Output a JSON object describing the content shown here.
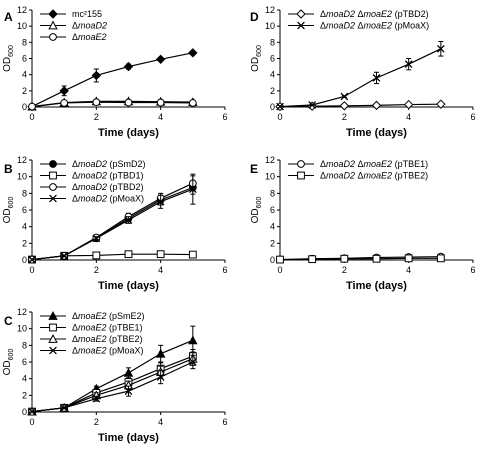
{
  "chart_data": [
    {
      "panel": "A",
      "type": "line",
      "xlabel": "Time (days)",
      "ylabel": "OD600",
      "xlim": [
        0,
        6
      ],
      "ylim": [
        0,
        12
      ],
      "xticks": [
        0,
        2,
        4,
        6
      ],
      "yticks": [
        0,
        2,
        4,
        6,
        8,
        10,
        12
      ],
      "legend_position": "top-left",
      "series": [
        {
          "name": "mc²155",
          "legend_parts": [
            {
              "t": "mc²155",
              "i": false
            }
          ],
          "marker": "diamond-filled",
          "x": [
            0,
            1,
            2,
            3,
            4,
            5
          ],
          "y": [
            0.05,
            2.0,
            3.9,
            5.0,
            5.9,
            6.7
          ],
          "err": [
            0,
            0.6,
            0.8,
            0.3,
            0.2,
            0.15
          ]
        },
        {
          "name": "ΔmoaD2",
          "legend_parts": [
            {
              "t": "Δ",
              "i": false
            },
            {
              "t": "moaD2",
              "i": true
            }
          ],
          "marker": "triangle-open",
          "x": [
            0,
            1,
            2,
            3,
            4,
            5
          ],
          "y": [
            0.05,
            0.55,
            0.7,
            0.7,
            0.65,
            0.6
          ],
          "err": [
            0,
            0.15,
            0.2,
            0.15,
            0.1,
            0.1
          ]
        },
        {
          "name": "ΔmoaE2",
          "legend_parts": [
            {
              "t": "Δ",
              "i": false
            },
            {
              "t": "moaE2",
              "i": true
            }
          ],
          "marker": "circle-open",
          "x": [
            0,
            1,
            2,
            3,
            4,
            5
          ],
          "y": [
            0.05,
            0.5,
            0.6,
            0.55,
            0.55,
            0.5
          ],
          "err": [
            0,
            0.1,
            0.1,
            0.1,
            0.1,
            0.1
          ]
        }
      ]
    },
    {
      "panel": "B",
      "type": "line",
      "xlabel": "Time (days)",
      "ylabel": "OD600",
      "xlim": [
        0,
        6
      ],
      "ylim": [
        0,
        12
      ],
      "xticks": [
        0,
        2,
        4,
        6
      ],
      "yticks": [
        0,
        2,
        4,
        6,
        8,
        10,
        12
      ],
      "legend_position": "top-left",
      "series": [
        {
          "name": "ΔmoaD2 (pSmD2)",
          "legend_parts": [
            {
              "t": "Δ",
              "i": false
            },
            {
              "t": "moaD2",
              "i": true
            },
            {
              "t": " (pSmD2)",
              "i": false
            }
          ],
          "marker": "circle-filled",
          "x": [
            0,
            1,
            2,
            3,
            4,
            5
          ],
          "y": [
            0.05,
            0.5,
            2.6,
            5.0,
            7.2,
            8.7
          ],
          "err": [
            0,
            0.1,
            0.2,
            0.4,
            0.6,
            0.8
          ]
        },
        {
          "name": "ΔmoaD2 (pTBD1)",
          "legend_parts": [
            {
              "t": "Δ",
              "i": false
            },
            {
              "t": "moaD2",
              "i": true
            },
            {
              "t": " (pTBD1)",
              "i": false
            }
          ],
          "marker": "square-open",
          "x": [
            0,
            1,
            2,
            3,
            4,
            5
          ],
          "y": [
            0.05,
            0.5,
            0.55,
            0.7,
            0.7,
            0.65
          ],
          "err": [
            0,
            0.1,
            0.1,
            0.1,
            0.1,
            0.1
          ]
        },
        {
          "name": "ΔmoaD2 (pTBD2)",
          "legend_parts": [
            {
              "t": "Δ",
              "i": false
            },
            {
              "t": "moaD2",
              "i": true
            },
            {
              "t": " (pTBD2)",
              "i": false
            }
          ],
          "marker": "circle-open",
          "x": [
            0,
            1,
            2,
            3,
            4,
            5
          ],
          "y": [
            0.05,
            0.5,
            2.7,
            5.2,
            7.4,
            9.2
          ],
          "err": [
            0,
            0.1,
            0.2,
            0.4,
            0.6,
            0.9
          ]
        },
        {
          "name": "ΔmoaD2 (pMoaX)",
          "legend_parts": [
            {
              "t": "Δ",
              "i": false
            },
            {
              "t": "moaD2",
              "i": true
            },
            {
              "t": " (pMoaX)",
              "i": false
            }
          ],
          "marker": "x",
          "x": [
            0,
            1,
            2,
            3,
            4,
            5
          ],
          "y": [
            0.05,
            0.5,
            2.6,
            4.8,
            7.0,
            8.5
          ],
          "err": [
            0,
            0.1,
            0.2,
            0.4,
            0.8,
            1.8
          ]
        }
      ]
    },
    {
      "panel": "C",
      "type": "line",
      "xlabel": "Time (days)",
      "ylabel": "OD600",
      "xlim": [
        0,
        6
      ],
      "ylim": [
        0,
        12
      ],
      "xticks": [
        0,
        2,
        4,
        6
      ],
      "yticks": [
        0,
        2,
        4,
        6,
        8,
        10,
        12
      ],
      "legend_position": "top-left",
      "series": [
        {
          "name": "ΔmoaE2 (pSmE2)",
          "legend_parts": [
            {
              "t": "Δ",
              "i": false
            },
            {
              "t": "moaE2",
              "i": true
            },
            {
              "t": " (pSmE2)",
              "i": false
            }
          ],
          "marker": "triangle-filled",
          "x": [
            0,
            1,
            2,
            3,
            4,
            5
          ],
          "y": [
            0.05,
            0.5,
            2.8,
            4.7,
            7.0,
            8.6
          ],
          "err": [
            0,
            0.1,
            0.3,
            0.6,
            1.0,
            1.7
          ]
        },
        {
          "name": "ΔmoaE2 (pTBE1)",
          "legend_parts": [
            {
              "t": "Δ",
              "i": false
            },
            {
              "t": "moaE2",
              "i": true
            },
            {
              "t": " (pTBE1)",
              "i": false
            }
          ],
          "marker": "square-open",
          "x": [
            0,
            1,
            2,
            3,
            4,
            5
          ],
          "y": [
            0.05,
            0.5,
            2.3,
            3.6,
            5.2,
            6.7
          ],
          "err": [
            0,
            0.1,
            0.3,
            0.5,
            0.7,
            0.8
          ]
        },
        {
          "name": "ΔmoaE2 (pTBE2)",
          "legend_parts": [
            {
              "t": "Δ",
              "i": false
            },
            {
              "t": "moaE2",
              "i": true
            },
            {
              "t": " (pTBE2)",
              "i": false
            }
          ],
          "marker": "triangle-open",
          "x": [
            0,
            1,
            2,
            3,
            4,
            5
          ],
          "y": [
            0.05,
            0.5,
            2.0,
            3.2,
            4.8,
            6.4
          ],
          "err": [
            0,
            0.1,
            0.3,
            0.5,
            0.7,
            0.8
          ]
        },
        {
          "name": "ΔmoaE2 (pMoaX)",
          "legend_parts": [
            {
              "t": "Δ",
              "i": false
            },
            {
              "t": "moaE2",
              "i": true
            },
            {
              "t": " (pMoaX)",
              "i": false
            }
          ],
          "marker": "x",
          "x": [
            0,
            1,
            2,
            3,
            4,
            5
          ],
          "y": [
            0.05,
            0.5,
            1.6,
            2.5,
            4.2,
            6.0
          ],
          "err": [
            0,
            0.1,
            0.3,
            0.6,
            0.8,
            0.8
          ]
        }
      ]
    },
    {
      "panel": "D",
      "type": "line",
      "xlabel": "Time (days)",
      "ylabel": "OD600",
      "xlim": [
        0,
        6
      ],
      "ylim": [
        0,
        12
      ],
      "xticks": [
        0,
        2,
        4,
        6
      ],
      "yticks": [
        0,
        2,
        4,
        6,
        8,
        10,
        12
      ],
      "legend_position": "top-left",
      "series": [
        {
          "name": "ΔmoaD2 ΔmoaE2 (pTBD2)",
          "legend_parts": [
            {
              "t": "Δ",
              "i": false
            },
            {
              "t": "moaD2",
              "i": true
            },
            {
              "t": " Δ",
              "i": false
            },
            {
              "t": "moaE2",
              "i": true
            },
            {
              "t": " (pTBD2)",
              "i": false
            }
          ],
          "marker": "diamond-open",
          "x": [
            0,
            1,
            2,
            3,
            4,
            5
          ],
          "y": [
            0.05,
            0.1,
            0.15,
            0.2,
            0.3,
            0.35
          ],
          "err": [
            0,
            0.05,
            0.05,
            0.05,
            0.05,
            0.05
          ]
        },
        {
          "name": "ΔmoaD2 ΔmoaE2 (pMoaX)",
          "legend_parts": [
            {
              "t": "Δ",
              "i": false
            },
            {
              "t": "moaD2",
              "i": true
            },
            {
              "t": " Δ",
              "i": false
            },
            {
              "t": "moaE2",
              "i": true
            },
            {
              "t": " (pMoaX)",
              "i": false
            }
          ],
          "marker": "x",
          "x": [
            0,
            1,
            2,
            3,
            4,
            5
          ],
          "y": [
            0.05,
            0.25,
            1.3,
            3.6,
            5.3,
            7.2
          ],
          "err": [
            0,
            0.05,
            0.1,
            0.7,
            0.7,
            0.9
          ]
        }
      ]
    },
    {
      "panel": "E",
      "type": "line",
      "xlabel": "Time (days)",
      "ylabel": "OD600",
      "xlim": [
        0,
        6
      ],
      "ylim": [
        0,
        12
      ],
      "xticks": [
        0,
        2,
        4,
        6
      ],
      "yticks": [
        0,
        2,
        4,
        6,
        8,
        10,
        12
      ],
      "legend_position": "top-left",
      "series": [
        {
          "name": "ΔmoaD2 ΔmoaE2 (pTBE1)",
          "legend_parts": [
            {
              "t": "Δ",
              "i": false
            },
            {
              "t": "moaD2",
              "i": true
            },
            {
              "t": " Δ",
              "i": false
            },
            {
              "t": "moaE2",
              "i": true
            },
            {
              "t": " (pTBE1)",
              "i": false
            }
          ],
          "marker": "circle-open",
          "x": [
            0,
            1,
            2,
            3,
            4,
            5
          ],
          "y": [
            0.05,
            0.15,
            0.2,
            0.3,
            0.35,
            0.4
          ],
          "err": [
            0,
            0.05,
            0.05,
            0.1,
            0.1,
            0.1
          ]
        },
        {
          "name": "ΔmoaD2 ΔmoaE2 (pTBE2)",
          "legend_parts": [
            {
              "t": "Δ",
              "i": false
            },
            {
              "t": "moaD2",
              "i": true
            },
            {
              "t": " Δ",
              "i": false
            },
            {
              "t": "moaE2",
              "i": true
            },
            {
              "t": " (pTBE2)",
              "i": false
            }
          ],
          "marker": "square-open",
          "x": [
            0,
            1,
            2,
            3,
            4,
            5
          ],
          "y": [
            0.05,
            0.1,
            0.15,
            0.15,
            0.2,
            0.2
          ],
          "err": [
            0,
            0.05,
            0.05,
            0.05,
            0.05,
            0.05
          ]
        }
      ]
    }
  ]
}
